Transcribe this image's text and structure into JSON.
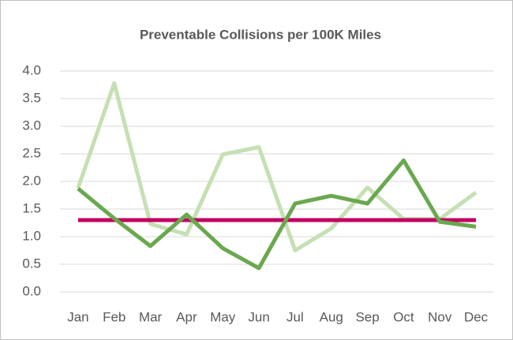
{
  "chart_data": {
    "type": "line",
    "title": "Preventable Collisions per 100K Miles",
    "categories": [
      "Jan",
      "Feb",
      "Mar",
      "Apr",
      "May",
      "Jun",
      "Jul",
      "Aug",
      "Sep",
      "Oct",
      "Nov",
      "Dec"
    ],
    "series": [
      {
        "color": "#c5e0b4",
        "values": [
          1.88,
          3.78,
          1.23,
          1.04,
          2.49,
          2.62,
          0.75,
          1.15,
          1.89,
          1.32,
          1.32,
          1.8
        ]
      },
      {
        "color": "#c00060",
        "values": [
          1.3,
          1.3,
          1.3,
          1.3,
          1.3,
          1.3,
          1.3,
          1.3,
          1.3,
          1.3,
          1.3,
          1.3
        ]
      },
      {
        "color": "#6aa84f",
        "values": [
          1.87,
          1.33,
          0.83,
          1.4,
          0.79,
          0.43,
          1.6,
          1.74,
          1.6,
          2.38,
          1.27,
          1.18
        ]
      }
    ],
    "ylim": [
      0,
      4
    ],
    "yticks": [
      {
        "value": 0,
        "label": "0.0"
      },
      {
        "value": 0.5,
        "label": "0.5"
      },
      {
        "value": 1,
        "label": "1.0"
      },
      {
        "value": 1.5,
        "label": "1.5"
      },
      {
        "value": 2,
        "label": "2.0"
      },
      {
        "value": 2.5,
        "label": "2.5"
      },
      {
        "value": 3,
        "label": "3.0"
      },
      {
        "value": 3.5,
        "label": "3.5"
      },
      {
        "value": 4,
        "label": "4.0"
      }
    ],
    "grid": true
  }
}
